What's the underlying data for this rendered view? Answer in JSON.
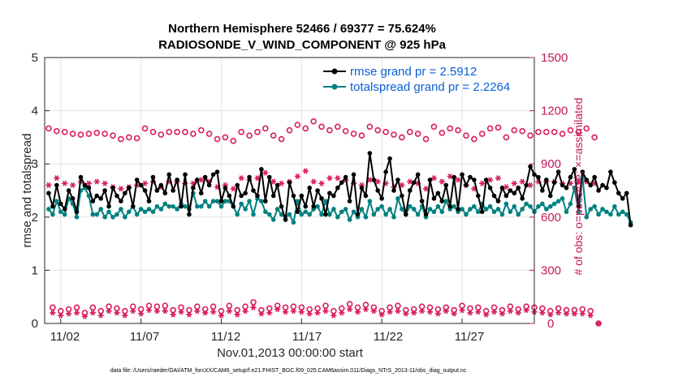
{
  "chart_data": {
    "type": "line",
    "title": "Northern Hemisphere 52466 / 69377 = 75.624%",
    "subtitle": "RADIOSONDE_V_WIND_COMPONENT @ 925 hPa",
    "xlabel": "Nov.01,2013 00:00:00 start",
    "ylabel_left": "rmse and totalspread",
    "ylabel_right": "# of obs: o=possible; ×=assimilated",
    "ylim_left": [
      0,
      5
    ],
    "ylim_right": [
      0,
      1500
    ],
    "yticks_left": [
      "0",
      "1",
      "2",
      "3",
      "4",
      "5"
    ],
    "yticks_right": [
      "0",
      "300",
      "600",
      "900",
      "1200",
      "1500"
    ],
    "xticks": [
      "11/02",
      "11/07",
      "11/12",
      "11/17",
      "11/22",
      "11/27"
    ],
    "xtick_days": [
      2,
      7,
      12,
      17,
      22,
      27
    ],
    "xlim_days": [
      1,
      31.5
    ],
    "footnote": "data file: /Users/raeder/DAI/ATM_forcXX/CAM6_setup/f.e21.FHIST_BGC.f09_025.CAM6assim.011/Diags_NTrS_2013-11/obs_diag_output.nc",
    "legend": [
      {
        "label": "rmse grand pr = 2.5912",
        "color": "#000000"
      },
      {
        "label": "totalspread grand pr = 2.2264",
        "color": "#008080"
      }
    ],
    "colors": {
      "rmse": "#000000",
      "spread": "#008080",
      "counts": "#d81b60"
    },
    "series": [
      {
        "name": "rmse",
        "x_start_day": 1.25,
        "x_step_day": 0.25,
        "values": [
          2.45,
          2.2,
          2.6,
          2.25,
          2.15,
          2.5,
          2.35,
          2.1,
          2.75,
          2.6,
          2.55,
          2.3,
          2.4,
          2.35,
          2.5,
          2.2,
          2.55,
          2.4,
          2.3,
          2.45,
          2.55,
          2.2,
          2.7,
          2.6,
          2.5,
          2.3,
          2.75,
          2.5,
          2.6,
          2.45,
          2.8,
          2.5,
          2.7,
          2.2,
          2.8,
          2.05,
          2.55,
          2.7,
          2.45,
          2.75,
          2.6,
          2.8,
          2.85,
          2.3,
          2.55,
          2.4,
          2.2,
          2.6,
          2.4,
          2.45,
          2.75,
          2.5,
          2.4,
          2.9,
          2.3,
          2.75,
          2.4,
          2.6,
          2.2,
          1.95,
          2.65,
          2.4,
          2.1,
          2.4,
          2.2,
          2.55,
          2.2,
          2.5,
          2.35,
          2.05,
          2.45,
          2.4,
          2.55,
          2.65,
          2.75,
          2.3,
          2.8,
          2.05,
          2.55,
          2.4,
          3.2,
          2.7,
          2.5,
          2.35,
          2.85,
          3.1,
          2.5,
          2.7,
          2.4,
          2.05,
          2.5,
          2.65,
          2.8,
          2.3,
          2.05,
          2.7,
          2.35,
          2.45,
          2.3,
          2.6,
          2.2,
          2.75,
          2.15,
          2.8,
          2.6,
          2.75,
          2.7,
          2.4,
          2.1,
          2.7,
          2.55,
          2.4,
          2.3,
          2.55,
          2.4,
          2.5,
          2.45,
          2.55,
          2.35,
          2.6,
          2.95,
          2.8,
          2.75,
          2.5,
          2.7,
          2.4,
          2.65,
          2.85,
          2.6,
          2.55,
          2.75,
          2.9,
          2.2,
          2.85,
          2.7,
          2.6,
          2.75,
          2.5,
          2.6,
          2.55,
          2.85,
          2.65,
          2.45,
          2.35,
          2.45,
          1.85
        ]
      },
      {
        "name": "totalspread",
        "x_start_day": 1.25,
        "x_step_day": 0.25,
        "values": [
          2.15,
          2.05,
          2.3,
          2.1,
          2.05,
          2.35,
          2.25,
          2.0,
          2.5,
          2.55,
          2.4,
          2.05,
          2.05,
          2.15,
          2.0,
          2.1,
          2.0,
          2.05,
          2.15,
          2.0,
          2.1,
          2.2,
          2.05,
          2.15,
          2.1,
          2.15,
          2.1,
          2.2,
          2.15,
          2.25,
          2.2,
          2.2,
          2.15,
          2.25,
          2.2,
          2.15,
          2.45,
          2.2,
          2.2,
          2.3,
          2.2,
          2.3,
          2.3,
          2.2,
          2.3,
          2.3,
          2.2,
          2.05,
          2.25,
          2.15,
          2.3,
          2.05,
          2.35,
          2.3,
          2.1,
          2.05,
          1.95,
          2.15,
          2.05,
          2.0,
          2.05,
          1.9,
          2.3,
          2.05,
          2.1,
          2.05,
          2.15,
          2.2,
          2.05,
          2.3,
          2.05,
          2.15,
          2.0,
          2.1,
          2.15,
          1.95,
          2.1,
          2.0,
          2.15,
          2.0,
          2.3,
          2.05,
          2.15,
          2.2,
          2.05,
          2.15,
          2.0,
          2.35,
          2.15,
          2.05,
          2.2,
          2.15,
          2.05,
          2.2,
          2.0,
          2.15,
          2.1,
          2.2,
          2.1,
          2.3,
          2.15,
          2.2,
          2.1,
          2.15,
          2.05,
          2.15,
          2.2,
          2.1,
          2.25,
          2.15,
          2.2,
          2.1,
          2.15,
          2.05,
          2.25,
          2.1,
          2.2,
          2.05,
          2.15,
          2.25,
          2.2,
          2.1,
          2.2,
          2.25,
          2.15,
          2.2,
          2.25,
          2.3,
          2.35,
          2.1,
          2.25,
          2.55,
          2.1,
          2.75,
          2.0,
          2.15,
          2.2,
          2.05,
          2.15,
          2.1,
          2.05,
          2.2,
          2.05,
          2.1,
          2.05,
          1.9
        ]
      },
      {
        "name": "possible",
        "marker": "o",
        "x_start_day": 1.25,
        "x_step_day": 0.25,
        "values": [
          1100,
          90,
          1085,
          70,
          1080,
          80,
          1070,
          90,
          1065,
          60,
          1070,
          90,
          1075,
          70,
          1070,
          95,
          1060,
          85,
          1040,
          70,
          1050,
          95,
          1045,
          80,
          1100,
          100,
          1080,
          95,
          1065,
          100,
          1080,
          75,
          1080,
          90,
          1080,
          75,
          1070,
          95,
          1090,
          80,
          1070,
          95,
          1040,
          70,
          1050,
          100,
          1030,
          75,
          1080,
          95,
          1060,
          120,
          1080,
          75,
          1100,
          85,
          1060,
          100,
          1040,
          90,
          1090,
          95,
          1120,
          90,
          1100,
          80,
          1140,
          85,
          1110,
          100,
          1090,
          70,
          1110,
          85,
          1085,
          110,
          1070,
          90,
          1060,
          105,
          1110,
          90,
          1090,
          70,
          1080,
          90,
          1065,
          100,
          1050,
          75,
          1080,
          80,
          1070,
          95,
          1040,
          90,
          1110,
          80,
          1075,
          90,
          1100,
          75,
          1090,
          100,
          1060,
          85,
          1040,
          90,
          1070,
          70,
          1100,
          90,
          1105,
          75,
          1050,
          95,
          1090,
          80,
          1085,
          95,
          1060,
          90,
          1080,
          85,
          1080,
          70,
          1080,
          85,
          1070,
          75,
          1090,
          75,
          1080,
          80,
          1100,
          70,
          1050,
          0
        ]
      },
      {
        "name": "assimilated",
        "marker": "×",
        "x_start_day": 1.25,
        "x_step_day": 0.25,
        "values": [
          780,
          60,
          820,
          45,
          790,
          55,
          780,
          60,
          800,
          40,
          790,
          60,
          800,
          45,
          790,
          70,
          770,
          60,
          760,
          45,
          770,
          70,
          780,
          55,
          790,
          75,
          800,
          70,
          770,
          70,
          800,
          50,
          800,
          65,
          790,
          50,
          790,
          70,
          810,
          60,
          800,
          65,
          770,
          45,
          780,
          70,
          760,
          50,
          820,
          70,
          810,
          90,
          820,
          55,
          850,
          60,
          800,
          80,
          790,
          65,
          800,
          70,
          830,
          65,
          860,
          55,
          800,
          60,
          790,
          70,
          820,
          45,
          820,
          60,
          810,
          80,
          790,
          65,
          780,
          80,
          810,
          70,
          800,
          50,
          790,
          65,
          770,
          70,
          780,
          55,
          800,
          60,
          790,
          70,
          760,
          65,
          820,
          55,
          800,
          70,
          830,
          55,
          810,
          75,
          780,
          60,
          760,
          65,
          790,
          50,
          810,
          65,
          820,
          55,
          770,
          70,
          790,
          60,
          800,
          75,
          780,
          65,
          800,
          60,
          800,
          50,
          800,
          60,
          790,
          55,
          790,
          55,
          800,
          55,
          800,
          45,
          790,
          0
        ]
      }
    ]
  }
}
